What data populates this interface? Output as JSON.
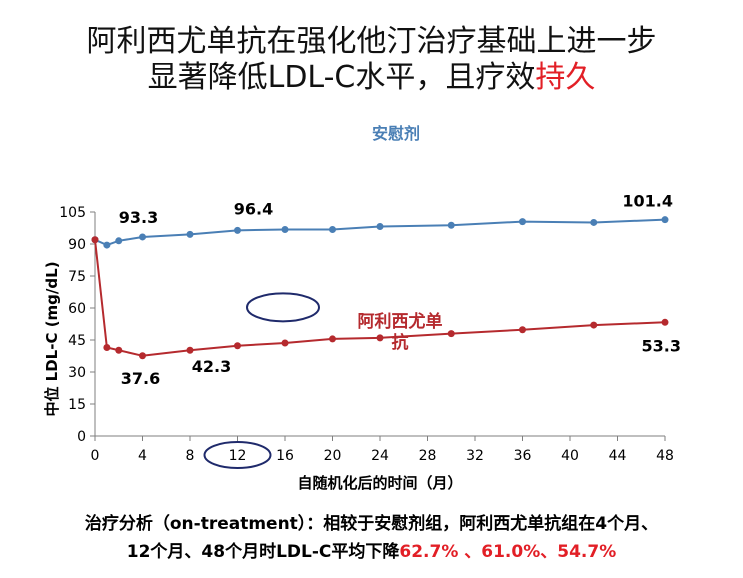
{
  "slide": {
    "title_line1": "阿利西尤单抗在强化他汀治疗基础上进一步",
    "title_line2_prefix": "显著降低LDL-C水平，且疗效",
    "title_line2_accent": "持久",
    "footer_line1": "治疗分析（on-treatment）：相较于安慰剂组，阿利西尤单抗组在4个月、",
    "footer_line2_prefix": "12个月、48个月时LDL-C平均下降",
    "footer_line2_accent": "62.7% 、61.0%、54.7%"
  },
  "colors": {
    "placebo": "#4a7fb5",
    "alirocumab": "#b52a2e",
    "accent_text": "#e21f26",
    "axis": "#7f7f7f",
    "highlight_ellipse": "#1f2a6b"
  },
  "chart_data": {
    "type": "line",
    "xlabel": "自随机化后的时间（月）",
    "ylabel": "中位 LDL-C (mg/dL)",
    "xlim": [
      0,
      48
    ],
    "ylim": [
      0,
      105
    ],
    "xticks": [
      0,
      4,
      8,
      12,
      16,
      20,
      24,
      28,
      32,
      36,
      40,
      44,
      48
    ],
    "yticks": [
      0,
      15,
      30,
      45,
      60,
      75,
      90,
      105
    ],
    "grid": false,
    "series": [
      {
        "name": "安慰剂",
        "color": "#4a7fb5",
        "x": [
          0,
          1,
          2,
          4,
          8,
          12,
          16,
          20,
          24,
          30,
          36,
          42,
          48
        ],
        "y": [
          92,
          89.5,
          91.5,
          93.3,
          94.5,
          96.4,
          96.8,
          96.8,
          98.2,
          98.8,
          100.5,
          100.1,
          101.4
        ]
      },
      {
        "name": "阿利西尤单抗",
        "color": "#b52a2e",
        "x": [
          0,
          1,
          2,
          4,
          8,
          12,
          16,
          20,
          24,
          30,
          36,
          42,
          48
        ],
        "y": [
          92,
          41.5,
          40.2,
          37.6,
          40.2,
          42.3,
          43.6,
          45.5,
          46.0,
          48.0,
          49.8,
          52.0,
          53.3
        ]
      }
    ],
    "data_labels": [
      {
        "text": "93.3",
        "series": 0,
        "x": 4,
        "y": 93.3
      },
      {
        "text": "96.4",
        "series": 0,
        "x": 12,
        "y": 96.4
      },
      {
        "text": "101.4",
        "series": 0,
        "x": 48,
        "y": 101.4
      },
      {
        "text": "37.6",
        "series": 1,
        "x": 4,
        "y": 37.6
      },
      {
        "text": "42.3",
        "series": 1,
        "x": 12,
        "y": 42.3
      },
      {
        "text": "53.3",
        "series": 1,
        "x": 48,
        "y": 53.3
      }
    ],
    "series_labels": [
      {
        "lines": [
          "安慰剂"
        ],
        "series": 0
      },
      {
        "lines": [
          "阿利西尤单",
          "抗"
        ],
        "series": 1
      }
    ],
    "highlights": [
      {
        "target": "x-tick",
        "value": 12
      },
      {
        "target": "point",
        "x": 16,
        "y": 50
      }
    ]
  }
}
